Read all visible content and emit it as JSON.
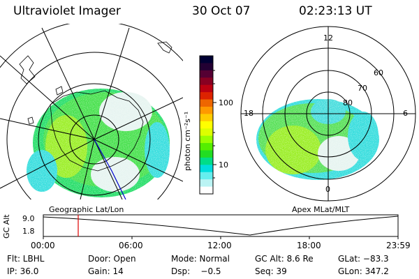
{
  "header": {
    "instrument": "Ultraviolet Imager",
    "date": "30 Oct 07",
    "time": "02:23:13 UT"
  },
  "left_panel": {
    "label": "Geographic Lat/Lon"
  },
  "right_panel": {
    "label": "Apex MLat/MLT",
    "mlt_labels": [
      "12",
      "18",
      "6",
      "0"
    ],
    "lat_labels": [
      "60",
      "70",
      "80"
    ]
  },
  "colorbar": {
    "unit": "photon cm⁻²s⁻¹",
    "ticks": [
      "100",
      "10"
    ],
    "colors": [
      "#000033",
      "#220033",
      "#550033",
      "#880022",
      "#bb0011",
      "#dd2200",
      "#ee6600",
      "#ff9900",
      "#ffcc00",
      "#ffff00",
      "#ddff00",
      "#99ff00",
      "#55ee00",
      "#22dd22",
      "#00dd88",
      "#00dddd",
      "#66eeee",
      "#bbf4f4",
      "#ffffff"
    ]
  },
  "timeline": {
    "axis_label": "GC Alt",
    "y_ticks": [
      "9.0",
      "1.8"
    ],
    "x_ticks": [
      "00:00",
      "06:00",
      "12:00",
      "18:00",
      "23:59"
    ],
    "marker_time": "02:23"
  },
  "info": {
    "flt": "Flt: LBHL",
    "ip": "IP: 36.0",
    "door": "Door: Open",
    "gain": "Gain: 14",
    "mode": "Mode: Normal",
    "dsp": "Dsp:    −0.5",
    "gc_alt": "GC Alt: 8.6 Re",
    "seq": "Seq: 39",
    "glat": "GLat: −83.3",
    "glon": "GLon: 347.2"
  }
}
